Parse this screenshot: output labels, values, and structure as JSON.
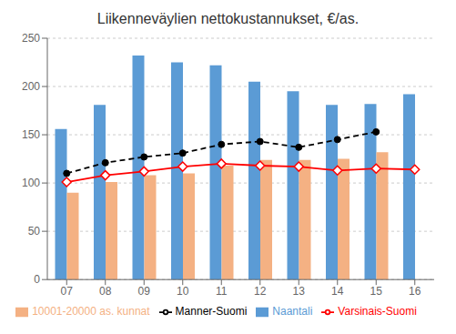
{
  "chart_data": {
    "type": "bar",
    "title": "Liikenneväylien nettokustannukset, €/as.",
    "categories": [
      "07",
      "08",
      "09",
      "10",
      "11",
      "12",
      "13",
      "14",
      "15",
      "16"
    ],
    "series": [
      {
        "name": "Naantali",
        "type": "bar",
        "color": "#5B9BD5",
        "values": [
          156,
          181,
          232,
          225,
          222,
          205,
          195,
          181,
          182,
          192
        ]
      },
      {
        "name": "10001-20000 as. kunnat",
        "type": "bar",
        "color": "#F4B183",
        "values": [
          90,
          101,
          108,
          110,
          118,
          124,
          124,
          125,
          132,
          null
        ]
      },
      {
        "name": "Varsinais-Suomi",
        "type": "line",
        "color": "#FF0000",
        "marker": "diamond",
        "line_style": "solid",
        "values": [
          101,
          108,
          112,
          117,
          120,
          118,
          117,
          113,
          115,
          114
        ]
      },
      {
        "name": "Manner-Suomi",
        "type": "line",
        "color": "#000000",
        "marker": "circle",
        "line_style": "dashed",
        "values": [
          110,
          121,
          127,
          131,
          140,
          143,
          137,
          145,
          153,
          null
        ]
      }
    ],
    "ylim": [
      0,
      250
    ],
    "yticks": [
      0,
      50,
      100,
      150,
      200,
      250
    ],
    "grid": true,
    "legend": "bottom"
  }
}
